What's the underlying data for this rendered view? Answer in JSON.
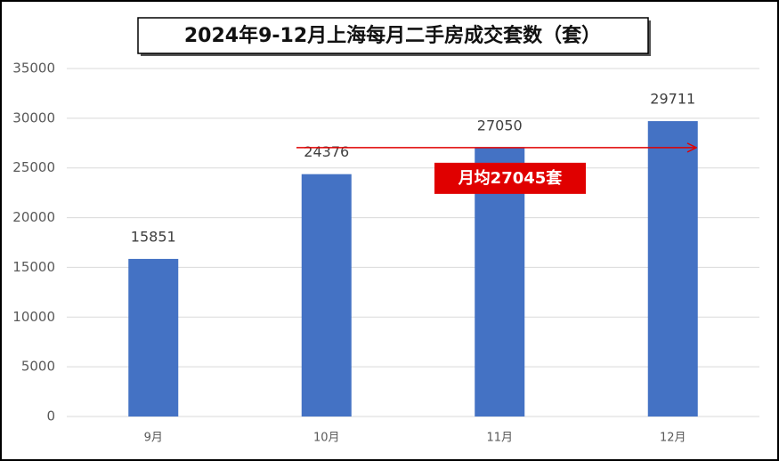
{
  "chart_data": {
    "type": "bar",
    "title": "2024年9-12月上海每月二手房成交套数（套）",
    "categories": [
      "9月",
      "10月",
      "11月",
      "12月"
    ],
    "values": [
      15851,
      24376,
      27050,
      29711
    ],
    "color": "#4472c4",
    "ylim": [
      0,
      35000
    ],
    "yticks": [
      0,
      5000,
      10000,
      15000,
      20000,
      25000,
      30000,
      35000
    ],
    "grid": true,
    "reference_line": {
      "value": 27045,
      "label": "月均27045套",
      "color": "#e00000"
    }
  }
}
